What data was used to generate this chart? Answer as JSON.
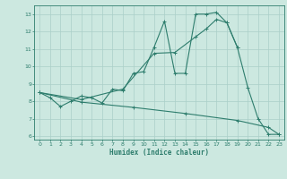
{
  "line1_x": [
    0,
    1,
    2,
    3,
    4,
    5,
    6,
    7,
    8,
    9,
    10,
    11,
    12,
    13,
    14,
    15,
    16,
    17,
    18,
    19,
    20,
    21,
    22,
    23
  ],
  "line1_y": [
    8.5,
    8.2,
    7.7,
    8.0,
    8.3,
    8.2,
    7.9,
    8.7,
    8.6,
    9.6,
    9.7,
    11.1,
    12.6,
    9.6,
    9.6,
    13.0,
    13.0,
    13.1,
    12.5,
    11.1,
    8.8,
    7.0,
    6.1,
    6.1
  ],
  "line2_x": [
    0,
    4,
    8,
    11,
    13,
    15,
    16,
    17,
    18,
    19
  ],
  "line2_y": [
    8.5,
    8.1,
    8.7,
    10.75,
    10.8,
    11.7,
    12.15,
    12.7,
    12.5,
    11.1
  ],
  "line3_x": [
    0,
    4,
    9,
    14,
    19,
    22,
    23
  ],
  "line3_y": [
    8.5,
    7.95,
    7.65,
    7.3,
    6.9,
    6.5,
    6.1
  ],
  "line_color": "#2e7d6d",
  "bg_color": "#cce8e0",
  "grid_color": "#aacfc8",
  "xlabel": "Humidex (Indice chaleur)",
  "xlim": [
    -0.5,
    23.5
  ],
  "ylim": [
    5.8,
    13.5
  ],
  "yticks": [
    6,
    7,
    8,
    9,
    10,
    11,
    12,
    13
  ],
  "xticks": [
    0,
    1,
    2,
    3,
    4,
    5,
    6,
    7,
    8,
    9,
    10,
    11,
    12,
    13,
    14,
    15,
    16,
    17,
    18,
    19,
    20,
    21,
    22,
    23
  ]
}
